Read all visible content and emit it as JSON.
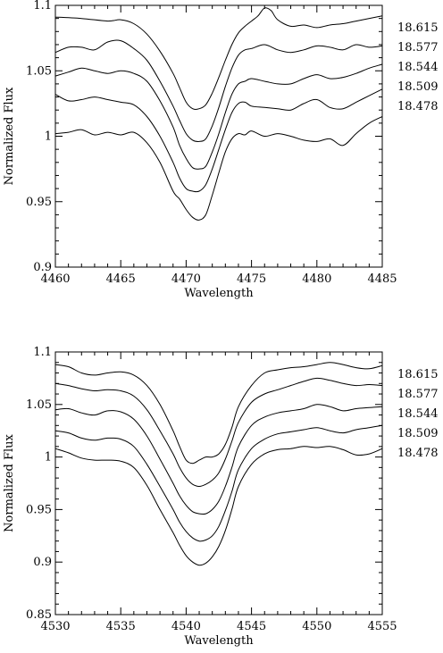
{
  "chart_data": [
    {
      "type": "line",
      "xlabel": "Wavelength",
      "ylabel": "Normalized Flux",
      "xlim": [
        4460,
        4485
      ],
      "ylim": [
        0.9,
        1.1
      ],
      "xticks_major": [
        4460,
        4465,
        4470,
        4475,
        4480,
        4485
      ],
      "xtick_labels": [
        "4460",
        "4465",
        "4470",
        "4475",
        "4480",
        "4485"
      ],
      "yticks_major": [
        0.9,
        0.95,
        1.0,
        1.05,
        1.1
      ],
      "ytick_labels": [
        "0.9",
        "0.95",
        "1",
        "1.05",
        "1.1"
      ],
      "x_minor_step": 1,
      "y_minor_step": 0.01,
      "series": [
        {
          "name": "18.615",
          "x": [
            4460,
            4462,
            4464,
            4465,
            4466,
            4467,
            4468,
            4469,
            4469.5,
            4470,
            4470.5,
            4471,
            4471.5,
            4472,
            4472.5,
            4473,
            4473.5,
            4474,
            4474.5,
            4475,
            4475.5,
            4476,
            4476.5,
            4477,
            4478,
            4479,
            4480,
            4481,
            4482,
            4483,
            4485
          ],
          "y": [
            1.091,
            1.09,
            1.088,
            1.089,
            1.086,
            1.078,
            1.065,
            1.048,
            1.037,
            1.026,
            1.021,
            1.021,
            1.024,
            1.033,
            1.045,
            1.058,
            1.07,
            1.079,
            1.084,
            1.088,
            1.092,
            1.098,
            1.096,
            1.089,
            1.084,
            1.085,
            1.083,
            1.085,
            1.086,
            1.088,
            1.092
          ]
        },
        {
          "name": "18.577",
          "x": [
            4460,
            4461,
            4462,
            4463,
            4464,
            4465,
            4466,
            4467,
            4468,
            4469,
            4469.5,
            4470,
            4470.5,
            4471,
            4471.5,
            4472,
            4472.5,
            4473,
            4473.5,
            4474,
            4474.5,
            4475,
            4476,
            4477,
            4478,
            4479,
            4480,
            4481,
            4482,
            4483,
            4484,
            4485
          ],
          "y": [
            1.064,
            1.068,
            1.068,
            1.066,
            1.072,
            1.073,
            1.067,
            1.058,
            1.042,
            1.023,
            1.012,
            1.002,
            0.997,
            0.996,
            0.998,
            1.008,
            1.022,
            1.038,
            1.052,
            1.062,
            1.066,
            1.067,
            1.07,
            1.066,
            1.064,
            1.066,
            1.069,
            1.068,
            1.066,
            1.07,
            1.068,
            1.069
          ]
        },
        {
          "name": "18.544",
          "x": [
            4460,
            4461,
            4462,
            4463,
            4464,
            4465,
            4466,
            4467,
            4468,
            4469,
            4469.5,
            4470,
            4470.5,
            4471,
            4471.5,
            4472,
            4472.5,
            4473,
            4473.5,
            4474,
            4474.5,
            4475,
            4476,
            4477,
            4478,
            4479,
            4480,
            4481,
            4482,
            4483,
            4484,
            4485
          ],
          "y": [
            1.046,
            1.049,
            1.052,
            1.05,
            1.048,
            1.05,
            1.048,
            1.042,
            1.027,
            1.007,
            0.993,
            0.983,
            0.976,
            0.975,
            0.977,
            0.988,
            1.002,
            1.018,
            1.032,
            1.04,
            1.042,
            1.044,
            1.042,
            1.04,
            1.04,
            1.044,
            1.047,
            1.044,
            1.045,
            1.048,
            1.052,
            1.055
          ]
        },
        {
          "name": "18.509",
          "x": [
            4460,
            4461,
            4462,
            4463,
            4464,
            4465,
            4466,
            4467,
            4468,
            4469,
            4469.5,
            4470,
            4470.5,
            4471,
            4471.5,
            4472,
            4472.5,
            4473,
            4473.5,
            4474,
            4474.5,
            4475,
            4476,
            4477,
            4478,
            4479,
            4480,
            4481,
            4482,
            4483,
            4484,
            4485
          ],
          "y": [
            1.032,
            1.027,
            1.028,
            1.03,
            1.028,
            1.026,
            1.024,
            1.015,
            1.0,
            0.98,
            0.968,
            0.96,
            0.958,
            0.958,
            0.963,
            0.975,
            0.99,
            1.005,
            1.018,
            1.025,
            1.026,
            1.023,
            1.022,
            1.021,
            1.02,
            1.025,
            1.028,
            1.022,
            1.021,
            1.026,
            1.031,
            1.036
          ]
        },
        {
          "name": "18.478",
          "x": [
            4460,
            4461,
            4462,
            4463,
            4464,
            4465,
            4466,
            4467,
            4468,
            4469,
            4469.5,
            4470,
            4470.5,
            4471,
            4471.5,
            4472,
            4472.5,
            4473,
            4473.5,
            4474,
            4474.5,
            4475,
            4476,
            4477,
            4478,
            4479,
            4480,
            4481,
            4482,
            4483,
            4484,
            4485
          ],
          "y": [
            1.002,
            1.003,
            1.005,
            1.001,
            1.003,
            1.001,
            1.003,
            0.995,
            0.98,
            0.958,
            0.952,
            0.944,
            0.938,
            0.936,
            0.94,
            0.955,
            0.972,
            0.988,
            0.998,
            1.002,
            1.001,
            1.004,
            1.0,
            1.002,
            1.0,
            0.997,
            0.996,
            0.998,
            0.993,
            1.002,
            1.01,
            1.015
          ]
        }
      ]
    },
    {
      "type": "line",
      "xlabel": "Wavelength",
      "ylabel": "Normalized Flux",
      "xlim": [
        4530,
        4555
      ],
      "ylim": [
        0.85,
        1.1
      ],
      "xticks_major": [
        4530,
        4535,
        4540,
        4545,
        4550,
        4555
      ],
      "xtick_labels": [
        "4530",
        "4535",
        "4540",
        "4545",
        "4550",
        "4555"
      ],
      "yticks_major": [
        0.85,
        0.9,
        0.95,
        1.0,
        1.05,
        1.1
      ],
      "ytick_labels": [
        "0.85",
        "0.9",
        "0.95",
        "1",
        "1.05",
        "1.1"
      ],
      "x_minor_step": 1,
      "y_minor_step": 0.01,
      "series": [
        {
          "name": "18.615",
          "x": [
            4530,
            4531,
            4532,
            4533,
            4534,
            4535,
            4536,
            4537,
            4538,
            4539,
            4539.5,
            4540,
            4540.5,
            4541,
            4541.5,
            4542,
            4542.5,
            4543,
            4543.5,
            4544,
            4545,
            4546,
            4547,
            4548,
            4549,
            4550,
            4551,
            4552,
            4553,
            4554,
            4555
          ],
          "y": [
            1.088,
            1.086,
            1.08,
            1.078,
            1.08,
            1.081,
            1.078,
            1.068,
            1.05,
            1.025,
            1.01,
            0.997,
            0.994,
            0.997,
            1.0,
            1.0,
            1.003,
            1.012,
            1.028,
            1.048,
            1.068,
            1.08,
            1.083,
            1.085,
            1.086,
            1.088,
            1.09,
            1.088,
            1.085,
            1.084,
            1.087
          ]
        },
        {
          "name": "18.577",
          "x": [
            4530,
            4531,
            4532,
            4533,
            4534,
            4535,
            4536,
            4537,
            4538,
            4539,
            4539.5,
            4540,
            4540.5,
            4541,
            4541.5,
            4542,
            4542.5,
            4543,
            4543.5,
            4544,
            4545,
            4546,
            4547,
            4548,
            4549,
            4550,
            4551,
            4552,
            4553,
            4554,
            4555
          ],
          "y": [
            1.07,
            1.068,
            1.065,
            1.063,
            1.064,
            1.063,
            1.058,
            1.045,
            1.025,
            1.003,
            0.99,
            0.98,
            0.974,
            0.972,
            0.974,
            0.978,
            0.985,
            0.998,
            1.015,
            1.033,
            1.052,
            1.06,
            1.064,
            1.068,
            1.072,
            1.075,
            1.073,
            1.07,
            1.068,
            1.069,
            1.068
          ]
        },
        {
          "name": "18.544",
          "x": [
            4530,
            4531,
            4532,
            4533,
            4534,
            4535,
            4536,
            4537,
            4538,
            4539,
            4539.5,
            4540,
            4540.5,
            4541,
            4541.5,
            4542,
            4542.5,
            4543,
            4543.5,
            4544,
            4545,
            4546,
            4547,
            4548,
            4549,
            4550,
            4551,
            4552,
            4553,
            4554,
            4555
          ],
          "y": [
            1.045,
            1.046,
            1.042,
            1.04,
            1.044,
            1.043,
            1.036,
            1.02,
            0.998,
            0.975,
            0.963,
            0.954,
            0.948,
            0.946,
            0.946,
            0.95,
            0.958,
            0.972,
            0.99,
            1.01,
            1.03,
            1.038,
            1.042,
            1.044,
            1.046,
            1.05,
            1.048,
            1.044,
            1.046,
            1.047,
            1.048
          ]
        },
        {
          "name": "18.509",
          "x": [
            4530,
            4531,
            4532,
            4533,
            4534,
            4535,
            4536,
            4537,
            4538,
            4539,
            4539.5,
            4540,
            4540.5,
            4541,
            4541.5,
            4542,
            4542.5,
            4543,
            4543.5,
            4544,
            4545,
            4546,
            4547,
            4548,
            4549,
            4550,
            4551,
            4552,
            4553,
            4554,
            4555
          ],
          "y": [
            1.025,
            1.023,
            1.018,
            1.016,
            1.018,
            1.017,
            1.01,
            0.993,
            0.972,
            0.95,
            0.938,
            0.929,
            0.923,
            0.92,
            0.921,
            0.925,
            0.934,
            0.949,
            0.967,
            0.988,
            1.008,
            1.017,
            1.022,
            1.024,
            1.026,
            1.028,
            1.025,
            1.023,
            1.026,
            1.028,
            1.03
          ]
        },
        {
          "name": "18.478",
          "x": [
            4530,
            4531,
            4532,
            4533,
            4534,
            4535,
            4536,
            4537,
            4538,
            4539,
            4539.5,
            4540,
            4540.5,
            4541,
            4541.5,
            4542,
            4542.5,
            4543,
            4543.5,
            4544,
            4545,
            4546,
            4547,
            4548,
            4549,
            4550,
            4551,
            4552,
            4553,
            4554,
            4555
          ],
          "y": [
            1.008,
            1.004,
            0.999,
            0.997,
            0.997,
            0.996,
            0.99,
            0.973,
            0.95,
            0.928,
            0.916,
            0.906,
            0.9,
            0.897,
            0.899,
            0.905,
            0.915,
            0.93,
            0.95,
            0.972,
            0.993,
            1.003,
            1.007,
            1.008,
            1.01,
            1.009,
            1.01,
            1.007,
            1.002,
            1.003,
            1.008
          ]
        }
      ]
    }
  ]
}
